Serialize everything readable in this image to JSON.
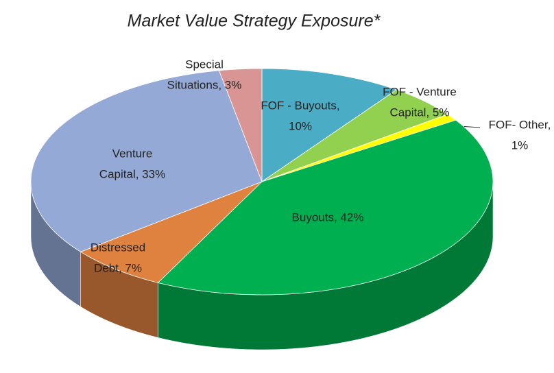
{
  "chart_data": {
    "type": "pie3d",
    "title": "Market Value Strategy Exposure*",
    "values": [
      10,
      5,
      1,
      42,
      7,
      33,
      3
    ],
    "value_labels": [
      [
        "FOF - Buyouts,",
        "10%"
      ],
      [
        "FOF - Venture",
        "Capital, 5%"
      ],
      [
        "FOF- Other,",
        "1%"
      ],
      [
        "Buyouts, 42%"
      ],
      [
        "Distressed",
        "Debt, 7%"
      ],
      [
        "Venture",
        "Capital, 33%"
      ],
      [
        "Special",
        "Situations, 3%"
      ]
    ],
    "colors": [
      "#4bacc6",
      "#92d050",
      "#ffff00",
      "#00b050",
      "#e0823f",
      "#95a9d6",
      "#d99594"
    ]
  }
}
